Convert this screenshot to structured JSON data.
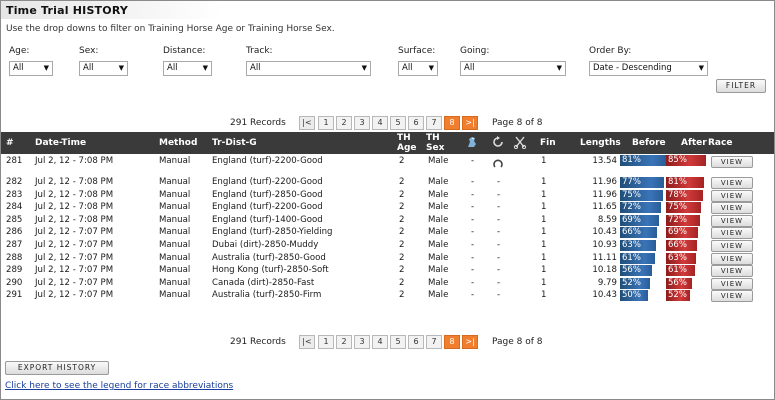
{
  "page": {
    "title": "Time Trial HISTORY",
    "subtitle": "Use the drop downs to filter on Training Horse Age or Training Horse Sex."
  },
  "filters": {
    "age": {
      "label": "Age:",
      "value": "All"
    },
    "sex": {
      "label": "Sex:",
      "value": "All"
    },
    "distance": {
      "label": "Distance:",
      "value": "All"
    },
    "track": {
      "label": "Track:",
      "value": "All"
    },
    "surface": {
      "label": "Surface:",
      "value": "All"
    },
    "going": {
      "label": "Going:",
      "value": "All"
    },
    "order": {
      "label": "Order By:",
      "value": "Date - Descending"
    },
    "filter_button": "FILTER"
  },
  "pagination": {
    "records": "291 Records",
    "first": "|<",
    "pages": [
      "1",
      "2",
      "3",
      "4",
      "5",
      "6",
      "7",
      "8"
    ],
    "current": "8",
    "last": ">|",
    "page_info": "Page 8 of 8"
  },
  "columns": {
    "num": "#",
    "datetime": "Date-Time",
    "method": "Method",
    "trdist": "Tr-Dist-G",
    "thage": "TH Age",
    "thsex": "TH Sex",
    "fin": "Fin",
    "lengths": "Lengths",
    "before": "Before",
    "after": "After",
    "race": "Race"
  },
  "rows": [
    {
      "num": "281",
      "datetime": "Jul 2, 12 - 7:08 PM",
      "method": "Manual",
      "trdist": "England (turf)-2200-Good",
      "age": "2",
      "sex": "Male",
      "c1": "-",
      "c2": "",
      "c3": "",
      "fin": "1",
      "lengths": "13.54",
      "before": "81%",
      "before_val": 81,
      "after": "85%",
      "after_val": 85,
      "view": "VIEW"
    },
    {
      "num": "282",
      "datetime": "Jul 2, 12 - 7:08 PM",
      "method": "Manual",
      "trdist": "England (turf)-2200-Good",
      "age": "2",
      "sex": "Male",
      "c1": "-",
      "c2": "-",
      "c3": "",
      "fin": "1",
      "lengths": "11.96",
      "before": "77%",
      "before_val": 77,
      "after": "81%",
      "after_val": 81,
      "view": "VIEW"
    },
    {
      "num": "283",
      "datetime": "Jul 2, 12 - 7:08 PM",
      "method": "Manual",
      "trdist": "England (turf)-2850-Good",
      "age": "2",
      "sex": "Male",
      "c1": "-",
      "c2": "-",
      "c3": "",
      "fin": "1",
      "lengths": "11.96",
      "before": "75%",
      "before_val": 75,
      "after": "78%",
      "after_val": 78,
      "view": "VIEW"
    },
    {
      "num": "284",
      "datetime": "Jul 2, 12 - 7:08 PM",
      "method": "Manual",
      "trdist": "England (turf)-2200-Good",
      "age": "2",
      "sex": "Male",
      "c1": "-",
      "c2": "-",
      "c3": "",
      "fin": "1",
      "lengths": "11.65",
      "before": "72%",
      "before_val": 72,
      "after": "75%",
      "after_val": 75,
      "view": "VIEW"
    },
    {
      "num": "285",
      "datetime": "Jul 2, 12 - 7:08 PM",
      "method": "Manual",
      "trdist": "England (turf)-1400-Good",
      "age": "2",
      "sex": "Male",
      "c1": "-",
      "c2": "-",
      "c3": "",
      "fin": "1",
      "lengths": "8.59",
      "before": "69%",
      "before_val": 69,
      "after": "72%",
      "after_val": 72,
      "view": "VIEW"
    },
    {
      "num": "286",
      "datetime": "Jul 2, 12 - 7:07 PM",
      "method": "Manual",
      "trdist": "England (turf)-2850-Yielding",
      "age": "2",
      "sex": "Male",
      "c1": "-",
      "c2": "-",
      "c3": "",
      "fin": "1",
      "lengths": "10.43",
      "before": "66%",
      "before_val": 66,
      "after": "69%",
      "after_val": 69,
      "view": "VIEW"
    },
    {
      "num": "287",
      "datetime": "Jul 2, 12 - 7:07 PM",
      "method": "Manual",
      "trdist": "Dubai (dirt)-2850-Muddy",
      "age": "2",
      "sex": "Male",
      "c1": "-",
      "c2": "-",
      "c3": "",
      "fin": "1",
      "lengths": "10.93",
      "before": "63%",
      "before_val": 63,
      "after": "66%",
      "after_val": 66,
      "view": "VIEW"
    },
    {
      "num": "288",
      "datetime": "Jul 2, 12 - 7:07 PM",
      "method": "Manual",
      "trdist": "Australia (turf)-2850-Good",
      "age": "2",
      "sex": "Male",
      "c1": "-",
      "c2": "-",
      "c3": "",
      "fin": "1",
      "lengths": "11.11",
      "before": "61%",
      "before_val": 61,
      "after": "63%",
      "after_val": 63,
      "view": "VIEW"
    },
    {
      "num": "289",
      "datetime": "Jul 2, 12 - 7:07 PM",
      "method": "Manual",
      "trdist": "Hong Kong (turf)-2850-Soft",
      "age": "2",
      "sex": "Male",
      "c1": "-",
      "c2": "-",
      "c3": "",
      "fin": "1",
      "lengths": "10.18",
      "before": "56%",
      "before_val": 56,
      "after": "61%",
      "after_val": 61,
      "view": "VIEW"
    },
    {
      "num": "290",
      "datetime": "Jul 2, 12 - 7:07 PM",
      "method": "Manual",
      "trdist": "Canada (dirt)-2850-Fast",
      "age": "2",
      "sex": "Male",
      "c1": "-",
      "c2": "-",
      "c3": "",
      "fin": "1",
      "lengths": "9.79",
      "before": "52%",
      "before_val": 52,
      "after": "56%",
      "after_val": 56,
      "view": "VIEW"
    },
    {
      "num": "291",
      "datetime": "Jul 2, 12 - 7:07 PM",
      "method": "Manual",
      "trdist": "Australia (turf)-2850-Firm",
      "age": "2",
      "sex": "Male",
      "c1": "-",
      "c2": "-",
      "c3": "",
      "fin": "1",
      "lengths": "10.43",
      "before": "50%",
      "before_val": 50,
      "after": "52%",
      "after_val": 52,
      "view": "VIEW"
    }
  ],
  "footer": {
    "export_button": "EXPORT HISTORY",
    "legend_link": "Click here to see the legend for race abbreviations"
  },
  "colors": {
    "header_bg": "#3a3a3a",
    "accent": "#f07e2e",
    "bar_blue": "#2f66a8",
    "bar_red": "#c33232",
    "link": "#1a3fa0"
  },
  "icons": {
    "col1": "horse-icon",
    "col2": "circular-arrow-icon",
    "col3": "scissors-icon",
    "row_icon": "horseshoe-icon"
  }
}
